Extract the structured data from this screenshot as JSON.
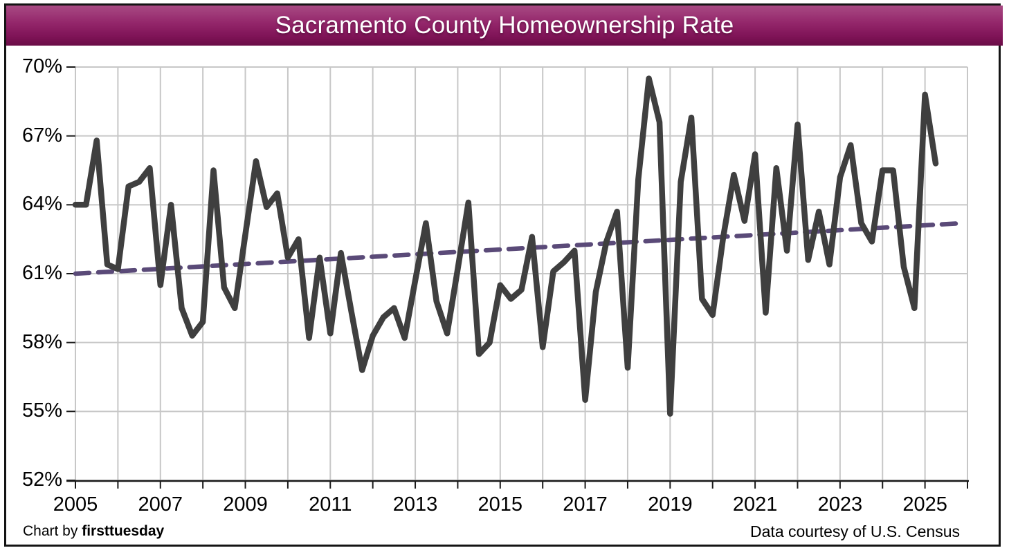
{
  "title": "Sacramento County Homeownership Rate",
  "footer": {
    "credit_prefix": "Chart by ",
    "credit_brand": "firsttuesday",
    "source": "Data courtesy of U.S. Census"
  },
  "colors": {
    "title_bar_top": "#a84a83",
    "title_bar_bottom": "#6a0c46",
    "title_text": "#ffffff",
    "series_line": "#3f3f3f",
    "trend_line": "#5a4a78",
    "gridline": "#c7c7c7",
    "axis": "#1a1a1a",
    "label_text": "#000000"
  },
  "chart_data": {
    "type": "line",
    "title": "Sacramento County Homeownership Rate",
    "series_name": "Sacramento County homeownership rate (quarterly)",
    "frequency": "quarterly",
    "x_start": {
      "year": 2005,
      "quarter": 1
    },
    "x_end": {
      "year": 2025,
      "quarter": 2
    },
    "quarters": [
      "2005 Q1",
      "2005 Q2",
      "2005 Q3",
      "2005 Q4",
      "2006 Q1",
      "2006 Q2",
      "2006 Q3",
      "2006 Q4",
      "2007 Q1",
      "2007 Q2",
      "2007 Q3",
      "2007 Q4",
      "2008 Q1",
      "2008 Q2",
      "2008 Q3",
      "2008 Q4",
      "2009 Q1",
      "2009 Q2",
      "2009 Q3",
      "2009 Q4",
      "2010 Q1",
      "2010 Q2",
      "2010 Q3",
      "2010 Q4",
      "2011 Q1",
      "2011 Q2",
      "2011 Q3",
      "2011 Q4",
      "2012 Q1",
      "2012 Q2",
      "2012 Q3",
      "2012 Q4",
      "2013 Q1",
      "2013 Q2",
      "2013 Q3",
      "2013 Q4",
      "2014 Q1",
      "2014 Q2",
      "2014 Q3",
      "2014 Q4",
      "2015 Q1",
      "2015 Q2",
      "2015 Q3",
      "2015 Q4",
      "2016 Q1",
      "2016 Q2",
      "2016 Q3",
      "2016 Q4",
      "2017 Q1",
      "2017 Q2",
      "2017 Q3",
      "2017 Q4",
      "2018 Q1",
      "2018 Q2",
      "2018 Q3",
      "2018 Q4",
      "2019 Q1",
      "2019 Q2",
      "2019 Q3",
      "2019 Q4",
      "2020 Q1",
      "2020 Q2",
      "2020 Q3",
      "2020 Q4",
      "2021 Q1",
      "2021 Q2",
      "2021 Q3",
      "2021 Q4",
      "2022 Q1",
      "2022 Q2",
      "2022 Q3",
      "2022 Q4",
      "2023 Q1",
      "2023 Q2",
      "2023 Q3",
      "2023 Q4",
      "2024 Q1",
      "2024 Q2",
      "2024 Q3",
      "2024 Q4",
      "2025 Q1",
      "2025 Q2"
    ],
    "values": [
      64.0,
      64.0,
      66.8,
      61.4,
      61.2,
      64.8,
      65.0,
      65.6,
      60.5,
      64.0,
      59.5,
      58.3,
      58.9,
      65.5,
      60.4,
      59.5,
      62.7,
      65.9,
      63.9,
      64.5,
      61.7,
      62.5,
      58.2,
      61.7,
      58.4,
      61.9,
      59.3,
      56.8,
      58.3,
      59.1,
      59.5,
      58.2,
      60.7,
      63.2,
      59.8,
      58.4,
      61.2,
      64.1,
      57.5,
      58.0,
      60.5,
      59.9,
      60.3,
      62.6,
      57.8,
      61.1,
      61.5,
      62.0,
      55.5,
      60.2,
      62.4,
      63.7,
      56.9,
      65.1,
      69.5,
      67.6,
      54.9,
      65.0,
      67.8,
      59.9,
      59.2,
      62.6,
      65.3,
      63.3,
      66.2,
      59.3,
      65.6,
      62.0,
      67.5,
      61.6,
      63.7,
      61.4,
      65.2,
      66.6,
      63.2,
      62.4,
      65.5,
      65.5,
      61.3,
      59.5,
      68.8,
      65.8
    ],
    "trend": {
      "name": "Linear trend",
      "style": "dashed",
      "start_value": 61.0,
      "end_value": 63.2
    },
    "ylim": [
      52,
      70
    ],
    "y_ticks": [
      70,
      67,
      64,
      61,
      58,
      55,
      52
    ],
    "y_tick_labels": [
      "70%",
      "67%",
      "64%",
      "61%",
      "58%",
      "55%",
      "52%"
    ],
    "x_grid_years": [
      2005,
      2026
    ],
    "x_tick_label_years": [
      2005,
      2007,
      2009,
      2011,
      2013,
      2015,
      2017,
      2019,
      2021,
      2023,
      2025
    ],
    "grid": true,
    "legend_position": "none"
  }
}
